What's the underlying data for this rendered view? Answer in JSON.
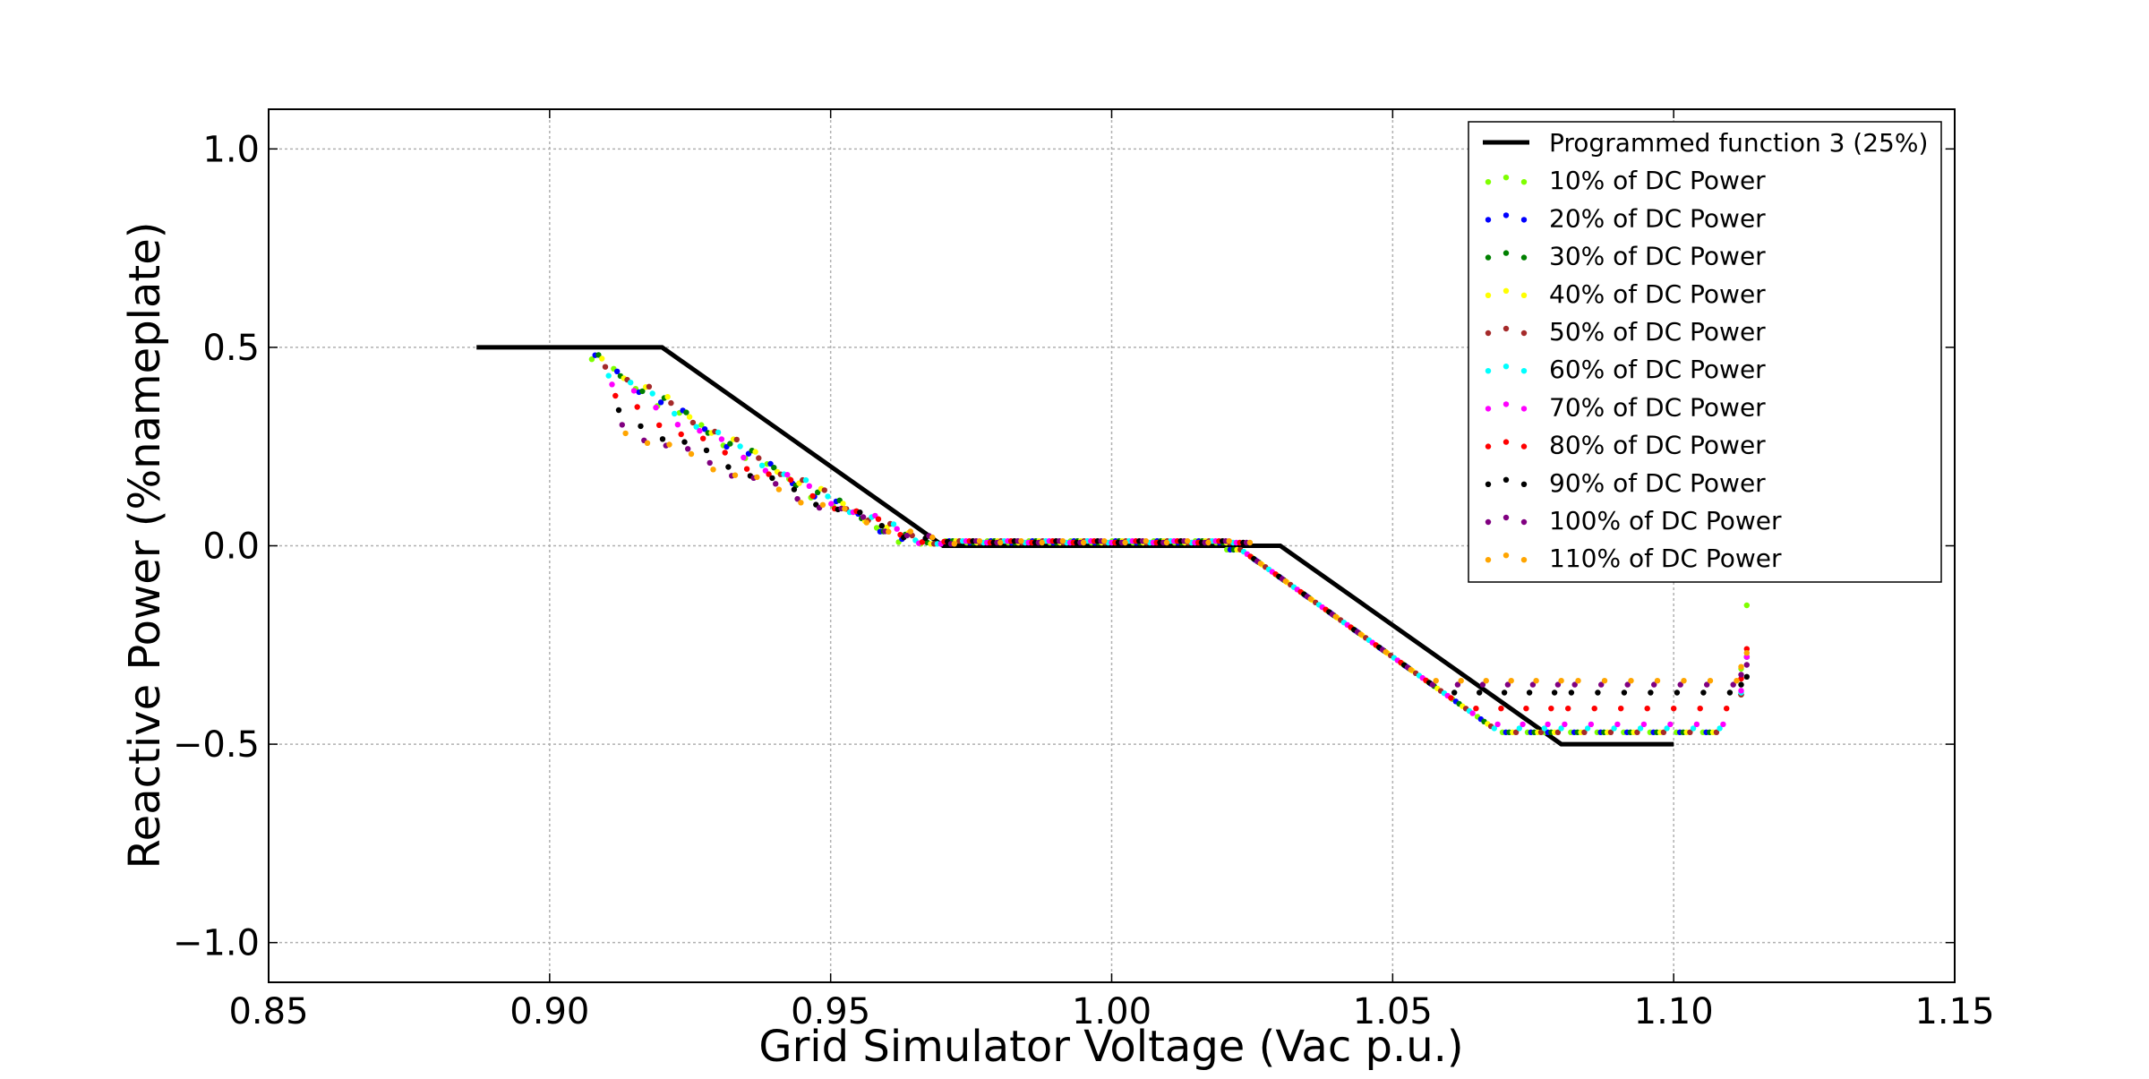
{
  "chart_data": {
    "type": "scatter",
    "xlabel": "Grid Simulator Voltage (Vac p.u.)",
    "ylabel": "Reactive Power (%nameplate)",
    "xlim": [
      0.85,
      1.15
    ],
    "ylim": [
      -1.1,
      1.1
    ],
    "xticks": [
      0.85,
      0.9,
      0.95,
      1.0,
      1.05,
      1.1,
      1.15
    ],
    "xtick_labels": [
      "0.85",
      "0.90",
      "0.95",
      "1.00",
      "1.05",
      "1.10",
      "1.15"
    ],
    "yticks": [
      1.0,
      0.5,
      0.0,
      -0.5,
      -1.0
    ],
    "ytick_labels": [
      "1.0",
      "0.5",
      "0.0",
      "−0.5",
      "−1.0"
    ],
    "grid": true,
    "legend_position": "top-right",
    "programmed_function": {
      "name": "Programmed function 3 (25%)",
      "color": "#000000",
      "x": [
        0.887,
        0.92,
        0.97,
        1.03,
        1.08,
        1.1
      ],
      "y": [
        0.5,
        0.5,
        0.0,
        0.0,
        -0.5,
        -0.5
      ]
    },
    "series": [
      {
        "name": "10% of DC Power",
        "color": "#7fff00",
        "low_start": 0.47,
        "high_end": -0.47,
        "tail": -0.15
      },
      {
        "name": "20% of DC Power",
        "color": "#0000ff",
        "low_start": 0.47,
        "high_end": -0.47,
        "tail": -0.28
      },
      {
        "name": "30% of DC Power",
        "color": "#008000",
        "low_start": 0.47,
        "high_end": -0.47,
        "tail": -0.28
      },
      {
        "name": "40% of DC Power",
        "color": "#ffff00",
        "low_start": 0.47,
        "high_end": -0.47,
        "tail": -0.28
      },
      {
        "name": "50% of DC Power",
        "color": "#a52a2a",
        "low_start": 0.46,
        "high_end": -0.47,
        "tail": -0.28
      },
      {
        "name": "60% of DC Power",
        "color": "#00ffff",
        "low_start": 0.44,
        "high_end": -0.46,
        "tail": -0.28
      },
      {
        "name": "70% of DC Power",
        "color": "#ff00ff",
        "low_start": 0.41,
        "high_end": -0.45,
        "tail": -0.28
      },
      {
        "name": "80% of DC Power",
        "color": "#ff0000",
        "low_start": 0.37,
        "high_end": -0.41,
        "tail": -0.26
      },
      {
        "name": "90% of DC Power",
        "color": "#000000",
        "low_start": 0.33,
        "high_end": -0.37,
        "tail": -0.33
      },
      {
        "name": "100% of DC Power",
        "color": "#800080",
        "low_start": 0.3,
        "high_end": -0.35,
        "tail": -0.3
      },
      {
        "name": "110% of DC Power",
        "color": "#ffa500",
        "low_start": 0.29,
        "high_end": -0.34,
        "tail": -0.27
      }
    ]
  }
}
